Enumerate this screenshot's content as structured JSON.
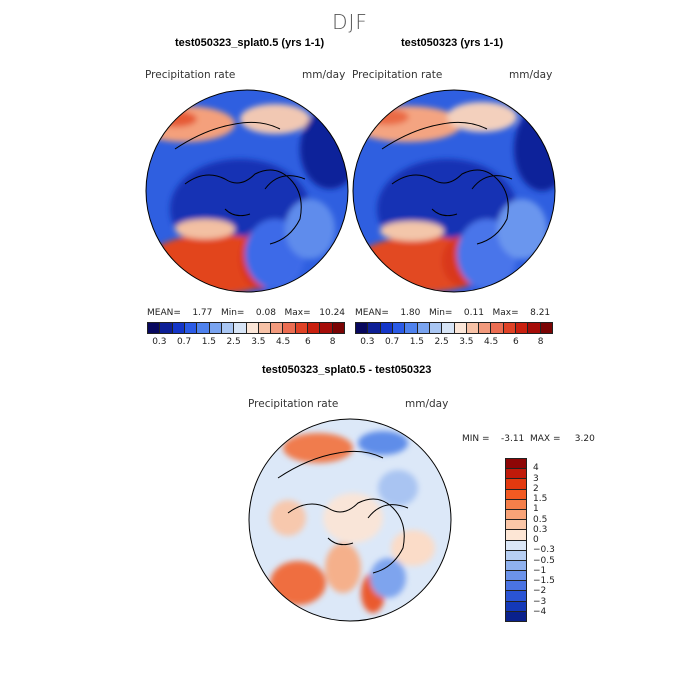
{
  "season": "DJF",
  "panels": {
    "left": {
      "title": "test050323_splat0.5 (yrs 1-1)",
      "variable": "Precipitation rate",
      "units": "mm/day",
      "stats": "MEAN=    1.77   Min=    0.08   Max=   10.24"
    },
    "right": {
      "title": "test050323 (yrs 1-1)",
      "variable": "Precipitation rate",
      "units": "mm/day",
      "stats": "MEAN=    1.80   Min=    0.11   Max=    8.21"
    },
    "diff": {
      "title": "test050323_splat0.5 - test050323",
      "variable": "Precipitation rate",
      "units": "mm/day",
      "stats": "MIN =    -3.11  MAX =     3.20"
    }
  },
  "colorbar_abs": {
    "ticks": [
      "0.3",
      "0.7",
      "1.5",
      "2.5",
      "3.5",
      "4.5",
      "6",
      "8"
    ],
    "colors": [
      "#08085e",
      "#0d1f96",
      "#1436c8",
      "#2b5be6",
      "#4f82ee",
      "#7aa4f0",
      "#a9c6f3",
      "#d6e4f6",
      "#fbe6d8",
      "#f7c2a7",
      "#f29a7d",
      "#eb6d52",
      "#df4226",
      "#c9200f",
      "#a50c08",
      "#7a0404"
    ]
  },
  "colorbar_diff": {
    "ticks": [
      "4",
      "3",
      "2",
      "1.5",
      "1",
      "0.5",
      "0.3",
      "0",
      "−0.3",
      "−0.5",
      "−1",
      "−1.5",
      "−2",
      "−3",
      "−4"
    ],
    "colors": [
      "#8e0606",
      "#c01a0a",
      "#e2390f",
      "#f25a22",
      "#f57f4a",
      "#f8a378",
      "#fbc7a8",
      "#fde6d5",
      "#dbe7f7",
      "#b7cff3",
      "#8fb1ee",
      "#6c93ea",
      "#4a73e2",
      "#2a54d4",
      "#1439b8",
      "#0a218c"
    ]
  }
}
